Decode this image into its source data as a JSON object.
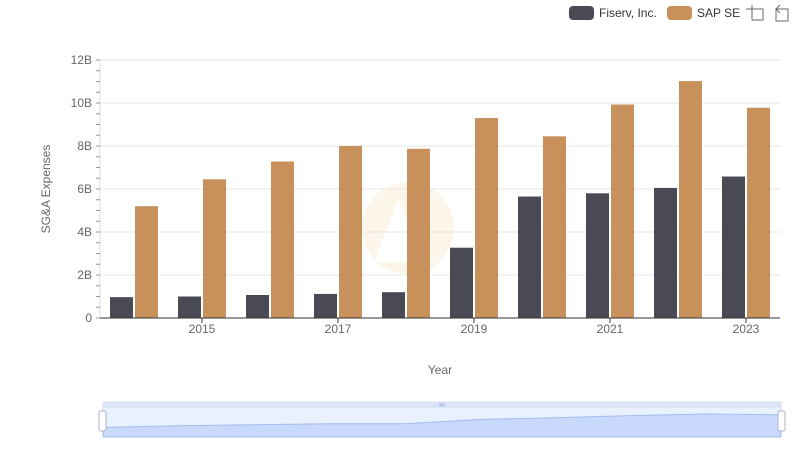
{
  "chart_data": {
    "type": "bar",
    "title": "",
    "xlabel": "Year",
    "ylabel": "SG&A Expenses",
    "categories": [
      "2014",
      "2015",
      "2016",
      "2017",
      "2018",
      "2019",
      "2020",
      "2021",
      "2022",
      "2023"
    ],
    "x_tick_labels": [
      "2015",
      "2017",
      "2019",
      "2021",
      "2023"
    ],
    "y_tick_labels": [
      "0",
      "2B",
      "4B",
      "6B",
      "8B",
      "10B",
      "12B"
    ],
    "y_tick_values": [
      0,
      2,
      4,
      6,
      8,
      10,
      12
    ],
    "ylim": [
      0,
      12
    ],
    "unit": "billions",
    "grid": true,
    "legend_position": "top-right",
    "series": [
      {
        "name": "Fiserv, Inc.",
        "color": "#4a4a55",
        "values": [
          0.97,
          1.0,
          1.07,
          1.12,
          1.2,
          3.27,
          5.65,
          5.8,
          6.05,
          6.58
        ]
      },
      {
        "name": "SAP SE",
        "color": "#c8915c",
        "values": [
          5.2,
          6.45,
          7.28,
          8.0,
          7.87,
          9.3,
          8.45,
          9.93,
          11.02,
          9.78
        ]
      }
    ]
  },
  "toolbox": {
    "zoom_icon": "zoom-icon",
    "restore_icon": "restore-icon"
  },
  "data_zoom": {
    "start_percent": 0,
    "end_percent": 100
  }
}
